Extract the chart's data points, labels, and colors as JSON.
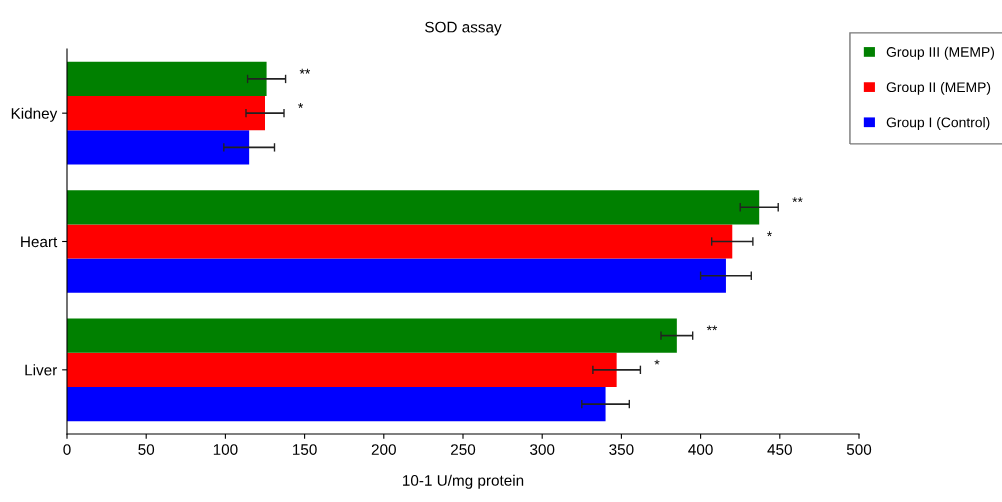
{
  "chart_data": {
    "type": "bar",
    "orientation": "horizontal",
    "title": "SOD assay",
    "xlabel": "10-1 U/mg protein",
    "categories": [
      "Kidney",
      "Heart",
      "Liver"
    ],
    "series": [
      {
        "name": "Group I (Control)",
        "color": "#0000ff",
        "values": [
          115,
          416,
          340
        ],
        "errors": [
          16,
          16,
          15
        ]
      },
      {
        "name": "Group II (MEMP)",
        "color": "#ff0000",
        "values": [
          125,
          420,
          347
        ],
        "errors": [
          12,
          13,
          15
        ]
      },
      {
        "name": "Group III (MEMP)",
        "color": "#008000",
        "values": [
          126,
          437,
          385
        ],
        "errors": [
          12,
          12,
          10
        ]
      }
    ],
    "xlim": [
      0,
      500
    ],
    "xticks": [
      0,
      50,
      100,
      150,
      200,
      250,
      300,
      350,
      400,
      450,
      500
    ],
    "grid": false,
    "legend": "top right",
    "annotations": [
      "*",
      "**",
      "*",
      "**",
      "*",
      "**"
    ]
  }
}
